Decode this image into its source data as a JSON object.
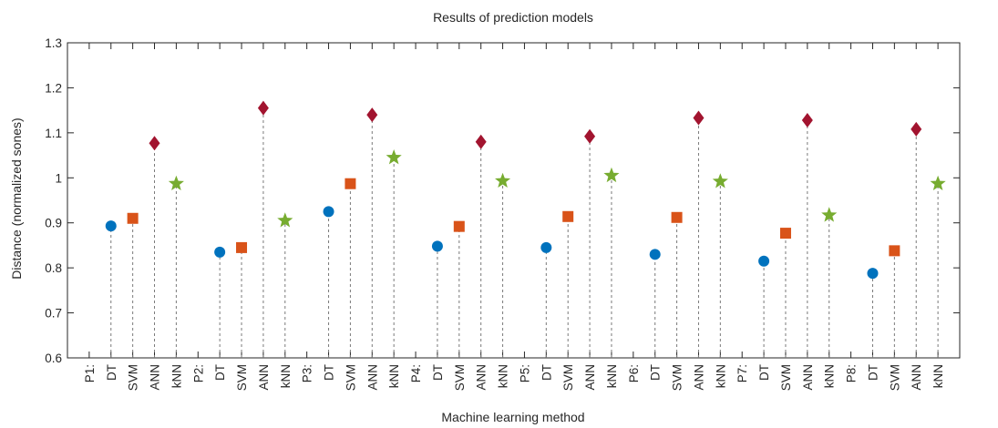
{
  "chart_data": {
    "type": "scatter",
    "title": "Results of prediction models",
    "xlabel": "Machine learning method",
    "ylabel": "Distance (normalized sones)",
    "ylim": [
      0.6,
      1.3
    ],
    "yticks": [
      "0.6",
      "0.7",
      "0.8",
      "0.9",
      "1",
      "1.1",
      "1.2",
      "1.3"
    ],
    "grid": false,
    "stems": "dashed",
    "categories": [
      "P1:",
      "DT",
      "SVM",
      "ANN",
      "kNN",
      "P2:",
      "DT",
      "SVM",
      "ANN",
      "kNN",
      "P3:",
      "DT",
      "SVM",
      "ANN",
      "kNN",
      "P4:",
      "DT",
      "SVM",
      "ANN",
      "kNN",
      "P5:",
      "DT",
      "SVM",
      "ANN",
      "kNN",
      "P6:",
      "DT",
      "SVM",
      "ANN",
      "kNN",
      "P7:",
      "DT",
      "SVM",
      "ANN",
      "kNN",
      "P8:",
      "DT",
      "SVM",
      "ANN",
      "kNN"
    ],
    "series": [
      {
        "method": "DT",
        "marker": "circle",
        "color": "#0072BD",
        "values": [
          0.893,
          0.835,
          0.925,
          0.848,
          0.845,
          0.83,
          0.815,
          0.788
        ]
      },
      {
        "method": "SVM",
        "marker": "square",
        "color": "#D95319",
        "values": [
          0.91,
          0.845,
          0.987,
          0.892,
          0.914,
          0.912,
          0.877,
          0.838
        ]
      },
      {
        "method": "ANN",
        "marker": "diamond",
        "color": "#A2142F",
        "values": [
          1.077,
          1.155,
          1.14,
          1.08,
          1.092,
          1.133,
          1.128,
          1.108
        ]
      },
      {
        "method": "kNN",
        "marker": "star",
        "color": "#77AC30",
        "values": [
          0.987,
          0.905,
          1.045,
          0.993,
          1.005,
          0.992,
          0.917,
          0.987
        ]
      }
    ]
  }
}
